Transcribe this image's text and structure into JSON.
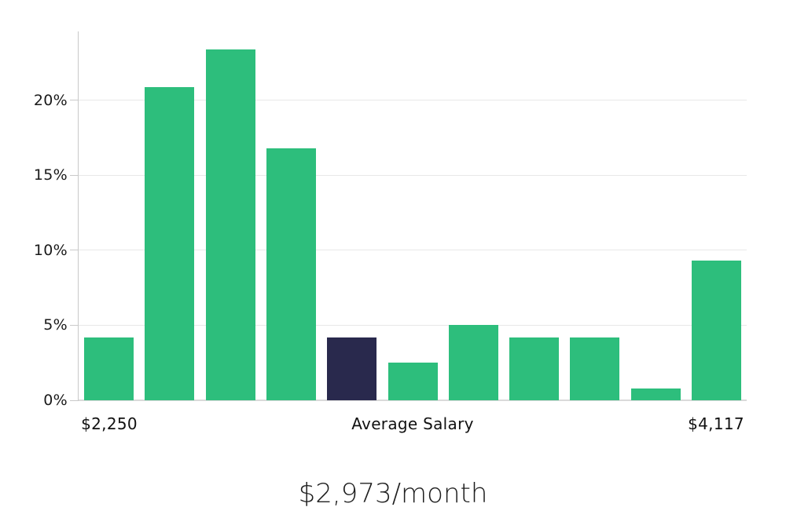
{
  "chart_data": {
    "type": "bar",
    "description": "Monthly salary distribution histogram",
    "values": [
      4.2,
      20.9,
      23.4,
      16.8,
      4.2,
      2.5,
      5.0,
      4.2,
      4.2,
      0.8,
      9.3
    ],
    "highlight_index": 4,
    "ylim": [
      0,
      24.6
    ],
    "grid": true,
    "legend_position": "none",
    "y_ticks": [
      {
        "v": 0,
        "label": "0%"
      },
      {
        "v": 5,
        "label": "5%"
      },
      {
        "v": 10,
        "label": "10%"
      },
      {
        "v": 15,
        "label": "15%"
      },
      {
        "v": 20,
        "label": "20%"
      }
    ],
    "x_labels": {
      "left": "$2,250",
      "center": "Average Salary",
      "right": "$4,117"
    },
    "colors": {
      "bar": "#2DBE7C",
      "highlight_bar": "#29294D",
      "gridline": "#e8e8e8",
      "axis": "#c9c9c9",
      "text": "#1a1a1a"
    }
  },
  "caption": {
    "text": "$2,973/month"
  }
}
